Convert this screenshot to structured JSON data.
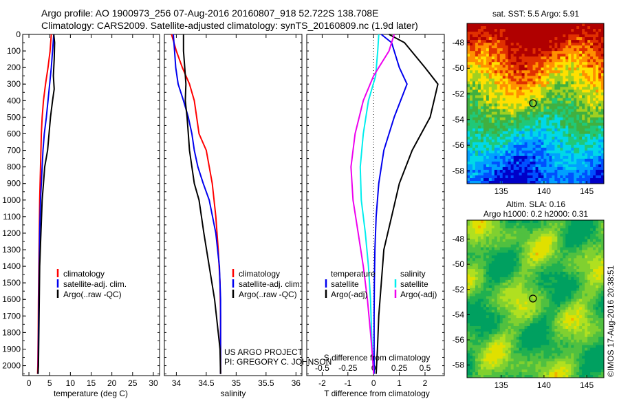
{
  "header": {
    "line1": "Argo profile: AO 1900973_256 07-Aug-2016 20160807_918 52.722S 138.708E",
    "line2": "Climatology: CARS2009. Satellite-adjusted climatology: synTS_20160809.nc (1.9d later)"
  },
  "colors": {
    "climatology": "#ff0000",
    "satellite": "#0000ee",
    "argo": "#000000",
    "salinity_sat": "#00eeee",
    "salinity_argo": "#ee00ee"
  },
  "credit": {
    "line1": "US ARGO PROJECT",
    "line2": "PI: GREGORY C. JOHNSON"
  },
  "timestamp": "©IMOS 17-Aug-2016 20:38:51",
  "chart_data": [
    {
      "type": "line",
      "xlabel": "temperature (deg C)",
      "ylabel": "",
      "xlim": [
        -1.5,
        31.5
      ],
      "ylim": [
        2060,
        0
      ],
      "xticks": [
        0,
        5,
        10,
        15,
        20,
        25,
        30
      ],
      "yticks": [
        0,
        100,
        200,
        300,
        400,
        500,
        600,
        700,
        800,
        900,
        1000,
        1100,
        1200,
        1300,
        1400,
        1500,
        1600,
        1700,
        1800,
        1900,
        2000
      ],
      "legend": [
        "climatology",
        "satellite-adj. clim.",
        "Argo(..raw -QC)"
      ],
      "series": [
        {
          "name": "climatology",
          "color": "red",
          "x": [
            5.4,
            5.1,
            4.6,
            4.0,
            3.5,
            3.2,
            3.0,
            2.9,
            2.8,
            2.7,
            2.6,
            2.5,
            2.4,
            2.3,
            2.25,
            2.2,
            2.15,
            2.1
          ],
          "y": [
            0,
            100,
            200,
            300,
            400,
            500,
            600,
            700,
            800,
            900,
            1000,
            1200,
            1400,
            1600,
            1800,
            1900,
            2000,
            2050
          ]
        },
        {
          "name": "satellite-adj. clim.",
          "color": "blue",
          "x": [
            6.0,
            5.7,
            5.4,
            5.0,
            4.6,
            4.2,
            3.7,
            3.4,
            3.2,
            3.0,
            2.8,
            2.6,
            2.5,
            2.4,
            2.3,
            2.25,
            2.2
          ],
          "y": [
            0,
            100,
            200,
            300,
            400,
            500,
            600,
            700,
            800,
            900,
            1000,
            1200,
            1400,
            1600,
            1800,
            2000,
            2050
          ]
        },
        {
          "name": "Argo(..raw -QC)",
          "color": "black",
          "x": [
            6.0,
            6.2,
            6.1,
            5.9,
            6.1,
            5.7,
            5.2,
            4.5,
            3.8,
            3.5,
            3.2,
            2.9,
            2.6,
            2.5,
            2.4,
            2.3,
            2.2
          ],
          "y": [
            0,
            50,
            150,
            250,
            330,
            400,
            500,
            700,
            800,
            900,
            1000,
            1200,
            1400,
            1600,
            1800,
            2000,
            2050
          ]
        }
      ]
    },
    {
      "type": "line",
      "xlabel": "salinity",
      "xlim": [
        33.8,
        36.1
      ],
      "ylim": [
        2060,
        0
      ],
      "xticks": [
        34,
        34.5,
        35,
        35.5,
        36
      ],
      "legend": [
        "climatology",
        "satellite-adj. clim.",
        "Argo(..raw -QC)"
      ],
      "series": [
        {
          "name": "climatology",
          "color": "red",
          "x": [
            33.92,
            34.0,
            34.1,
            34.22,
            34.3,
            34.38,
            34.5,
            34.6,
            34.66,
            34.7,
            34.73,
            34.74,
            34.74,
            34.74
          ],
          "y": [
            0,
            100,
            200,
            300,
            400,
            600,
            700,
            900,
            1100,
            1300,
            1500,
            1700,
            1900,
            2050
          ]
        },
        {
          "name": "satellite-adj. clim.",
          "color": "blue",
          "x": [
            33.95,
            33.97,
            33.99,
            34.03,
            34.12,
            34.2,
            34.26,
            34.3,
            34.36,
            34.45,
            34.55,
            34.66,
            34.72,
            34.74,
            34.74,
            34.74,
            34.74
          ],
          "y": [
            0,
            100,
            200,
            300,
            400,
            500,
            600,
            700,
            800,
            900,
            1000,
            1200,
            1400,
            1600,
            1700,
            1900,
            2050
          ]
        },
        {
          "name": "Argo(..raw -QC)",
          "color": "black",
          "x": [
            34.12,
            34.12,
            34.14,
            34.16,
            34.15,
            34.18,
            34.2,
            34.22,
            34.26,
            34.3,
            34.38,
            34.46,
            34.55,
            34.64,
            34.7,
            34.73,
            34.74
          ],
          "y": [
            0,
            100,
            200,
            300,
            400,
            500,
            600,
            700,
            800,
            900,
            1000,
            1200,
            1400,
            1600,
            1800,
            1900,
            2050
          ]
        }
      ]
    },
    {
      "type": "line",
      "xlabel": "T difference from climatology",
      "xlabel2": "S difference from climatology",
      "xlim": [
        -2.6,
        2.75
      ],
      "ylim": [
        2060,
        0
      ],
      "xticks": [
        -2,
        -1,
        0,
        1,
        2
      ],
      "xticks2": [
        -0.5,
        -0.25,
        0,
        0.25,
        0.5
      ],
      "xlim2": [
        -0.65,
        0.6875
      ],
      "legend_t": {
        "title": "temperature",
        "items": [
          "satellite",
          "Argo(-adj)"
        ]
      },
      "legend_s": {
        "title": "salinity",
        "items": [
          "satellite",
          "Argo(-adj)"
        ]
      },
      "series": [
        {
          "name": "T satellite",
          "color": "blue",
          "x": [
            0.3,
            0.7,
            1.0,
            1.3,
            0.8,
            0.4,
            0.2,
            0.1,
            0.05,
            0.03,
            0.02,
            0.02,
            0.02
          ],
          "y": [
            0,
            50,
            200,
            300,
            500,
            700,
            900,
            1100,
            1300,
            1500,
            1700,
            1900,
            2050
          ]
        },
        {
          "name": "T Argo(-adj)",
          "color": "black",
          "x": [
            0.6,
            1.2,
            2.0,
            2.5,
            2.2,
            1.5,
            1.0,
            0.7,
            0.4,
            0.3,
            0.2,
            0.15,
            0.1
          ],
          "y": [
            0,
            50,
            200,
            300,
            500,
            700,
            900,
            1100,
            1300,
            1500,
            1700,
            1900,
            2050
          ]
        },
        {
          "name": "S satellite",
          "color": "cyan",
          "x": [
            0.05,
            0.04,
            0.02,
            -0.05,
            -0.1,
            -0.13,
            -0.12,
            -0.08,
            -0.05,
            -0.03,
            -0.02,
            -0.01,
            0.0
          ],
          "y": [
            0,
            100,
            250,
            400,
            600,
            800,
            1000,
            1200,
            1400,
            1600,
            1800,
            1950,
            2050
          ]
        },
        {
          "name": "S Argo(-adj)",
          "color": "magenta",
          "x": [
            0.2,
            0.15,
            0.0,
            -0.1,
            -0.18,
            -0.22,
            -0.2,
            -0.15,
            -0.1,
            -0.06,
            -0.03,
            -0.01,
            0.0
          ],
          "y": [
            0,
            100,
            250,
            400,
            600,
            800,
            1000,
            1200,
            1400,
            1600,
            1800,
            1950,
            2050
          ]
        }
      ]
    },
    {
      "type": "heatmap",
      "title": "sat. SST: 5.5 Argo: 5.91",
      "xlim": [
        131,
        147
      ],
      "ylim": [
        -59,
        -46.5
      ],
      "xticks": [
        135,
        140,
        145
      ],
      "yticks": [
        -48,
        -50,
        -52,
        -54,
        -56,
        -58
      ],
      "marker": {
        "lon": 138.708,
        "lat": -52.722
      }
    },
    {
      "type": "heatmap",
      "title": "Altim. SLA: 0.16",
      "subtitle": "Argo h1000: 0.2 h2000: 0.31",
      "xlim": [
        131,
        147
      ],
      "ylim": [
        -59,
        -46.5
      ],
      "xticks": [
        135,
        140,
        145
      ],
      "yticks": [
        -48,
        -50,
        -52,
        -54,
        -56,
        -58
      ],
      "marker": {
        "lon": 138.708,
        "lat": -52.722
      }
    }
  ]
}
